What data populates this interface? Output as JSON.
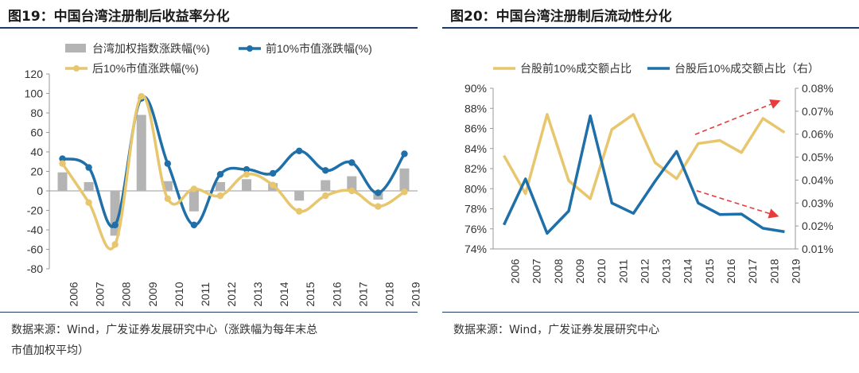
{
  "colors": {
    "bar": "#b4b4b4",
    "front": "#1f6fa8",
    "back": "#e8c66d",
    "arrow": "#e83c3c",
    "rule": "#1f3864"
  },
  "left": {
    "title": "图19：中国台湾注册制后收益率分化",
    "source_line1": "数据来源：Wind，广发证券发展研究中心（涨跌幅为每年末总",
    "source_line2": "市值加权平均）"
  },
  "right": {
    "title": "图20：中国台湾注册制后流动性分化",
    "source_line1": "数据来源：Wind，广发证券发展研究中心"
  },
  "chart_data": [
    {
      "type": "bar+line",
      "categories": [
        "2006",
        "2007",
        "2008",
        "2009",
        "2010",
        "2011",
        "2012",
        "2013",
        "2014",
        "2015",
        "2016",
        "2017",
        "2018",
        "2019"
      ],
      "series": [
        {
          "name": "台湾加权指数涨跌幅(%)",
          "kind": "bar",
          "values": [
            19,
            9,
            -46,
            78,
            10,
            -21,
            9,
            12,
            8,
            -10,
            11,
            15,
            -9,
            23
          ]
        },
        {
          "name": "前10%市值涨跌幅(%)",
          "kind": "line",
          "values": [
            33,
            24,
            -35,
            95,
            28,
            -35,
            17,
            22,
            18,
            41,
            21,
            29,
            -2,
            38
          ]
        },
        {
          "name": "后10%市值涨跌幅(%)",
          "kind": "line",
          "values": [
            28,
            -12,
            -55,
            97,
            -8,
            2,
            -5,
            17,
            6,
            -21,
            -5,
            0,
            -16,
            -1
          ]
        }
      ],
      "ylim": [
        -80,
        120
      ],
      "yticks": [
        -80,
        -60,
        -40,
        -20,
        0,
        20,
        40,
        60,
        80,
        100,
        120
      ],
      "legend": "top"
    },
    {
      "type": "line",
      "categories": [
        "2006",
        "2007",
        "2008",
        "2009",
        "2010",
        "2011",
        "2012",
        "2013",
        "2014",
        "2015",
        "2016",
        "2017",
        "2018",
        "2019"
      ],
      "series": [
        {
          "name": "台股前10%成交额占比",
          "axis": "left",
          "values": [
            83.3,
            79.5,
            87.4,
            80.8,
            79.0,
            85.9,
            87.4,
            82.6,
            81.0,
            84.5,
            84.8,
            83.6,
            87.0,
            85.6
          ]
        },
        {
          "name": "台股后10%成交额占比（右）",
          "axis": "right",
          "values": [
            0.0205,
            0.0405,
            0.0168,
            0.0265,
            0.068,
            0.03,
            0.0255,
            0.0395,
            0.0525,
            0.03,
            0.025,
            0.0252,
            0.019,
            0.0175
          ]
        }
      ],
      "ylim_left": [
        74,
        90
      ],
      "yticks_left": [
        "74%",
        "76%",
        "78%",
        "80%",
        "82%",
        "84%",
        "86%",
        "88%",
        "90%"
      ],
      "ylim_right": [
        0.01,
        0.08
      ],
      "yticks_right": [
        "0.01%",
        "0.02%",
        "0.03%",
        "0.04%",
        "0.05%",
        "0.06%",
        "0.07%",
        "0.08%"
      ],
      "annotations": [
        "arrow up from 2014 to 2018",
        "arrow down from 2015 to 2018"
      ],
      "legend": "top"
    }
  ]
}
